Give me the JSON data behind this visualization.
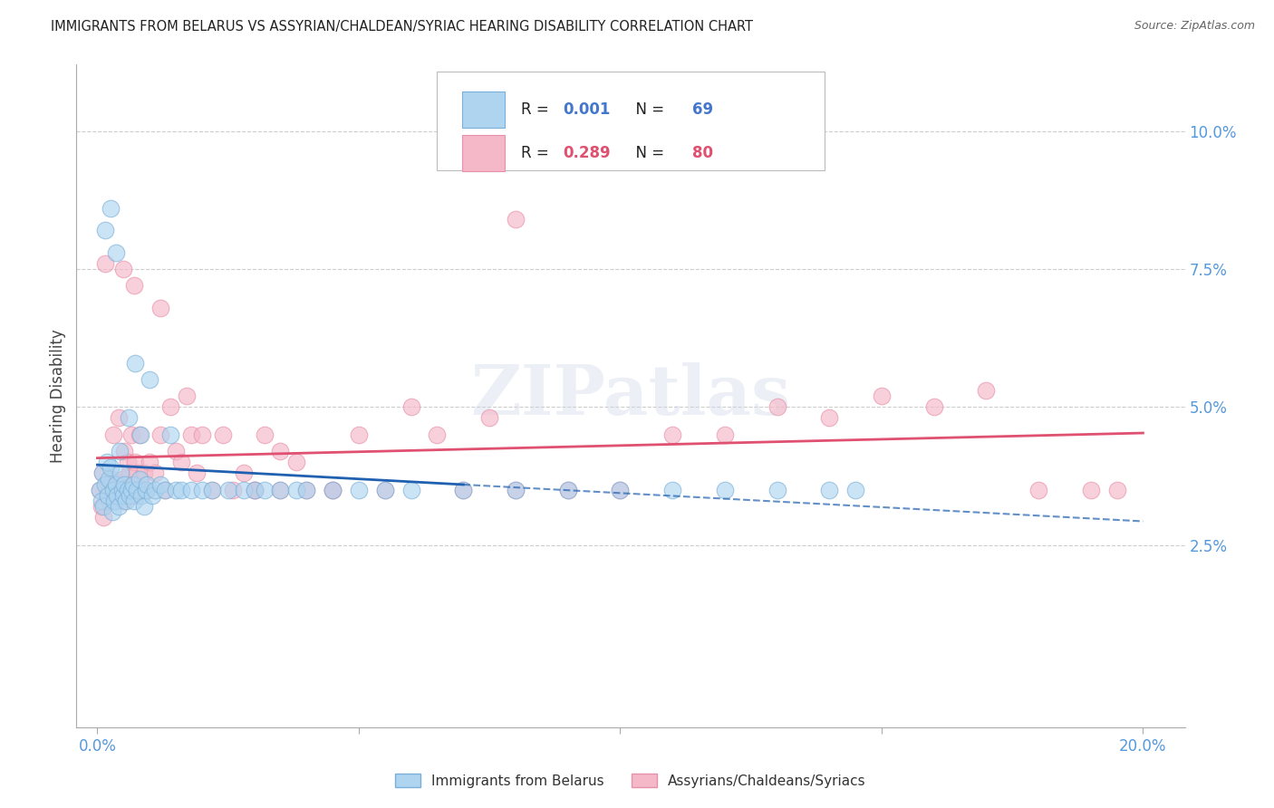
{
  "title": "IMMIGRANTS FROM BELARUS VS ASSYRIAN/CHALDEAN/SYRIAC HEARING DISABILITY CORRELATION CHART",
  "source": "Source: ZipAtlas.com",
  "ylabel": "Hearing Disability",
  "blue_R": "0.001",
  "blue_N": "69",
  "pink_R": "0.289",
  "pink_N": "80",
  "legend_label_blue": "Immigrants from Belarus",
  "legend_label_pink": "Assyrians/Chaldeans/Syriacs",
  "blue_fill_color": "#aed4f0",
  "pink_fill_color": "#f4b8c8",
  "blue_edge_color": "#7ab0d8",
  "pink_edge_color": "#e890a8",
  "blue_line_color": "#2060b0",
  "pink_line_color": "#e05070",
  "grid_color": "#c8c8c8",
  "background_color": "#ffffff",
  "axis_tick_color": "#5599dd",
  "legend_text_color": "#222222",
  "legend_value_color": "#4477cc",
  "pink_value_color": "#e05070",
  "ytick_vals": [
    2.5,
    5.0,
    7.5,
    10.0
  ],
  "xtick_vals": [
    0.0,
    5.0,
    10.0,
    15.0,
    20.0
  ],
  "xlim": [
    -0.4,
    20.8
  ],
  "ylim": [
    -0.8,
    11.2
  ],
  "blue_x": [
    0.05,
    0.08,
    0.1,
    0.12,
    0.15,
    0.18,
    0.2,
    0.22,
    0.25,
    0.28,
    0.3,
    0.32,
    0.35,
    0.38,
    0.4,
    0.42,
    0.45,
    0.48,
    0.5,
    0.52,
    0.55,
    0.58,
    0.6,
    0.62,
    0.65,
    0.68,
    0.7,
    0.72,
    0.75,
    0.8,
    0.82,
    0.85,
    0.9,
    0.92,
    0.95,
    1.0,
    1.05,
    1.1,
    1.2,
    1.3,
    1.4,
    1.5,
    1.6,
    1.8,
    2.0,
    2.2,
    2.5,
    2.8,
    3.0,
    3.2,
    3.5,
    3.8,
    4.0,
    4.5,
    5.0,
    5.5,
    6.0,
    7.0,
    8.0,
    9.0,
    10.0,
    11.0,
    12.0,
    13.0,
    14.0,
    14.5,
    0.15,
    0.25,
    0.35
  ],
  "blue_y": [
    3.5,
    3.3,
    3.8,
    3.2,
    3.6,
    4.0,
    3.4,
    3.7,
    3.9,
    3.1,
    3.5,
    3.3,
    3.6,
    3.4,
    3.2,
    4.2,
    3.8,
    3.5,
    3.4,
    3.6,
    3.3,
    3.5,
    4.8,
    3.4,
    3.5,
    3.6,
    3.3,
    5.8,
    3.5,
    3.7,
    4.5,
    3.4,
    3.2,
    3.5,
    3.6,
    5.5,
    3.4,
    3.5,
    3.6,
    3.5,
    4.5,
    3.5,
    3.5,
    3.5,
    3.5,
    3.5,
    3.5,
    3.5,
    3.5,
    3.5,
    3.5,
    3.5,
    3.5,
    3.5,
    3.5,
    3.5,
    3.5,
    3.5,
    3.5,
    3.5,
    3.5,
    3.5,
    3.5,
    3.5,
    3.5,
    3.5,
    8.2,
    8.6,
    7.8
  ],
  "pink_x": [
    0.05,
    0.08,
    0.1,
    0.12,
    0.15,
    0.18,
    0.2,
    0.22,
    0.25,
    0.28,
    0.3,
    0.32,
    0.35,
    0.38,
    0.4,
    0.42,
    0.45,
    0.48,
    0.5,
    0.52,
    0.55,
    0.58,
    0.6,
    0.62,
    0.65,
    0.68,
    0.7,
    0.72,
    0.75,
    0.8,
    0.85,
    0.9,
    0.95,
    1.0,
    1.1,
    1.2,
    1.3,
    1.4,
    1.5,
    1.6,
    1.7,
    1.8,
    1.9,
    2.0,
    2.2,
    2.4,
    2.6,
    2.8,
    3.0,
    3.2,
    3.5,
    3.8,
    4.0,
    4.5,
    5.0,
    5.5,
    6.0,
    6.5,
    7.0,
    7.5,
    8.0,
    9.0,
    10.0,
    11.0,
    12.0,
    13.0,
    14.0,
    15.0,
    16.0,
    17.0,
    18.0,
    19.0,
    19.5,
    0.5,
    0.7,
    1.2,
    8.0,
    3.0,
    3.5,
    4.5
  ],
  "pink_y": [
    3.5,
    3.2,
    3.8,
    3.0,
    7.6,
    3.4,
    3.6,
    3.3,
    3.5,
    3.7,
    4.5,
    3.5,
    3.4,
    3.6,
    4.8,
    3.5,
    3.4,
    3.7,
    3.3,
    4.2,
    3.5,
    4.0,
    3.5,
    3.8,
    4.5,
    3.4,
    3.6,
    4.0,
    3.8,
    4.5,
    3.5,
    3.8,
    3.5,
    4.0,
    3.8,
    4.5,
    3.5,
    5.0,
    4.2,
    4.0,
    5.2,
    4.5,
    3.8,
    4.5,
    3.5,
    4.5,
    3.5,
    3.8,
    3.5,
    4.5,
    4.2,
    4.0,
    3.5,
    3.5,
    4.5,
    3.5,
    5.0,
    4.5,
    3.5,
    4.8,
    3.5,
    3.5,
    3.5,
    4.5,
    4.5,
    5.0,
    4.8,
    5.2,
    5.0,
    5.3,
    3.5,
    3.5,
    3.5,
    7.5,
    7.2,
    6.8,
    8.4,
    3.5,
    3.5,
    3.5
  ]
}
